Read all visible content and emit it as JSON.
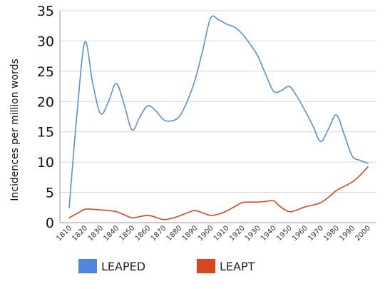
{
  "chart_data": {
    "type": "line",
    "title": "",
    "xlabel": "",
    "ylabel": "Incidences per million words",
    "x": [
      1810,
      1815,
      1820,
      1825,
      1830,
      1835,
      1840,
      1845,
      1850,
      1855,
      1860,
      1865,
      1870,
      1875,
      1880,
      1885,
      1890,
      1895,
      1900,
      1905,
      1910,
      1915,
      1920,
      1925,
      1930,
      1935,
      1940,
      1945,
      1950,
      1955,
      1960,
      1965,
      1970,
      1975,
      1980,
      1985,
      1990,
      1995,
      2000
    ],
    "x_ticks": [
      "1810",
      "1820",
      "1830",
      "1840",
      "1850",
      "1860",
      "1870",
      "1880",
      "1890",
      "1900",
      "1910",
      "1920",
      "1930",
      "1940",
      "1950",
      "1960",
      "1970",
      "1980",
      "1990",
      "2000"
    ],
    "y_ticks": [
      "0",
      "5",
      "10",
      "15",
      "20",
      "25",
      "30",
      "35"
    ],
    "ylim": [
      0,
      35
    ],
    "grid": true,
    "legend_position": "bottom",
    "series": [
      {
        "name": "LEAPED",
        "color": "#5b8fd6",
        "values": [
          2.5,
          18.0,
          29.8,
          23.0,
          18.0,
          20.0,
          23.0,
          19.5,
          15.3,
          17.5,
          19.3,
          18.5,
          17.0,
          16.8,
          17.5,
          20.0,
          23.5,
          28.5,
          33.8,
          33.5,
          32.8,
          32.3,
          31.2,
          29.5,
          27.5,
          24.5,
          21.7,
          21.8,
          22.5,
          20.8,
          18.5,
          16.0,
          13.4,
          15.5,
          17.8,
          14.5,
          11.0,
          10.3,
          9.8
        ]
      },
      {
        "name": "LEAPT",
        "color": "#d9471f",
        "values": [
          0.8,
          1.5,
          2.2,
          2.2,
          2.1,
          2.0,
          1.8,
          1.3,
          0.8,
          1.0,
          1.2,
          0.9,
          0.5,
          0.7,
          1.1,
          1.6,
          2.0,
          1.6,
          1.2,
          1.4,
          1.9,
          2.6,
          3.3,
          3.4,
          3.4,
          3.5,
          3.6,
          2.5,
          1.8,
          2.1,
          2.6,
          2.9,
          3.3,
          4.2,
          5.3,
          6.0,
          6.7,
          7.8,
          9.2
        ]
      }
    ]
  }
}
